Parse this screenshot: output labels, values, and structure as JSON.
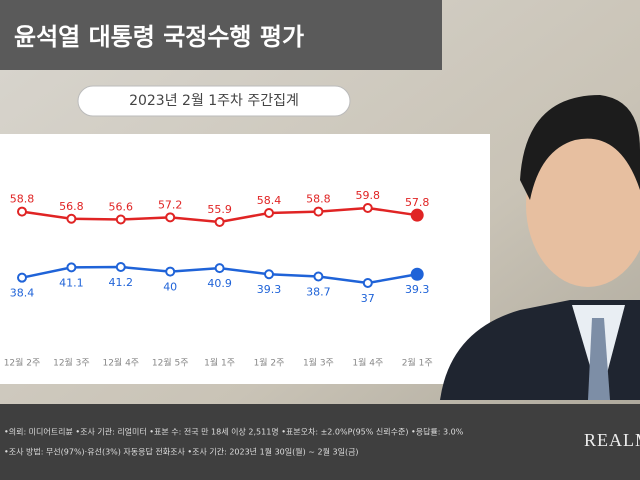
{
  "chart_data": {
    "type": "line",
    "title": "윤석열 대통령 국정수행 평가",
    "subtitle": "2023년 2월 1주차 주간집계",
    "categories": [
      "12월 2주",
      "12월 3주",
      "12월 4주",
      "12월 5주",
      "1월 1주",
      "1월 2주",
      "1월 3주",
      "1월 4주",
      "2월 1주"
    ],
    "series": [
      {
        "color": "#e02424",
        "values": [
          58.8,
          56.8,
          56.6,
          57.2,
          55.9,
          58.4,
          58.8,
          59.8,
          57.8
        ]
      },
      {
        "color": "#1f63d8",
        "values": [
          38.4,
          41.1,
          41.2,
          40.0,
          40.9,
          39.3,
          38.7,
          37.0,
          39.3
        ]
      }
    ],
    "footer": [
      "•의뢰: 미디어트리뷴 •조사 기관: 리얼미터 •표본 수: 전국 만 18세 이상 2,511명 •표본오차: ±2.0%P(95% 신뢰수준) •응답률: 3.0%",
      "•조사 방법: 무선(97%)·유선(3%) 자동응답 전화조사 •조사 기간: 2023년 1월 30일(월) ~ 2월 3일(금)"
    ],
    "logo": "REALMETER"
  }
}
